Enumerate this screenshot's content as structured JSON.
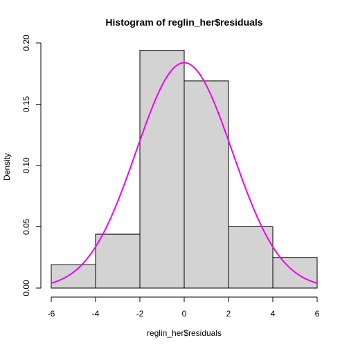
{
  "chart_data": {
    "type": "bar",
    "title": "Histogram of reglin_her$residuals",
    "xlabel": "reglin_her$residuals",
    "ylabel": "Density",
    "bins": [
      {
        "x0": -6,
        "x1": -4,
        "density": 0.019
      },
      {
        "x0": -4,
        "x1": -2,
        "density": 0.044
      },
      {
        "x0": -2,
        "x1": 0,
        "density": 0.194
      },
      {
        "x0": 0,
        "x1": 2,
        "density": 0.169
      },
      {
        "x0": 2,
        "x1": 4,
        "density": 0.05
      },
      {
        "x0": 4,
        "x1": 6,
        "density": 0.025
      }
    ],
    "xlim": [
      -6,
      6
    ],
    "ylim": [
      0,
      0.2
    ],
    "xticks": [
      "-6",
      "-4",
      "-2",
      "0",
      "2",
      "4",
      "6"
    ],
    "yticks": [
      "0.00",
      "0.05",
      "0.10",
      "0.15",
      "0.20"
    ],
    "overlay_curve": {
      "type": "normal-density",
      "mean": 0,
      "sd": 2.17,
      "color": "#ee00ee"
    },
    "bar_color": "#d3d3d3",
    "grid": false,
    "legend": "none"
  }
}
